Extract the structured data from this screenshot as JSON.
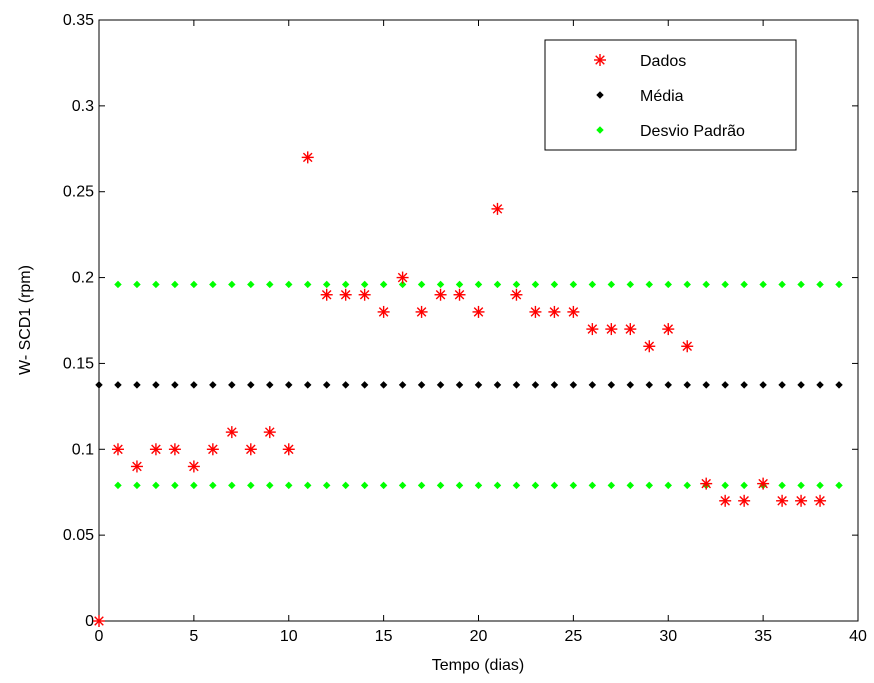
{
  "chart_data": {
    "type": "scatter",
    "title": "",
    "xlabel": "Tempo (dias)",
    "ylabel": "W- SCD1 (rpm)",
    "xlim": [
      0,
      40
    ],
    "ylim": [
      0,
      0.35
    ],
    "xticks": [
      0,
      5,
      10,
      15,
      20,
      25,
      30,
      35,
      40
    ],
    "yticks": [
      0,
      0.05,
      0.1,
      0.15,
      0.2,
      0.25,
      0.3,
      0.35
    ],
    "xtick_labels": [
      "0",
      "5",
      "10",
      "15",
      "20",
      "25",
      "30",
      "35",
      "40"
    ],
    "ytick_labels": [
      "0",
      "0.05",
      "0.1",
      "0.15",
      "0.2",
      "0.25",
      "0.3",
      "0.35"
    ],
    "grid": false,
    "legend_position": "top-right",
    "series": [
      {
        "name": "Dados",
        "marker": "asterisk",
        "color": "#ff0000",
        "x": [
          0,
          1,
          2,
          3,
          4,
          5,
          6,
          7,
          8,
          9,
          10,
          11,
          12,
          13,
          14,
          15,
          16,
          17,
          18,
          19,
          20,
          21,
          22,
          23,
          24,
          25,
          26,
          27,
          28,
          29,
          30,
          31,
          32,
          33,
          34,
          35,
          36,
          37,
          38
        ],
        "y": [
          0,
          0.1,
          0.09,
          0.1,
          0.1,
          0.09,
          0.1,
          0.11,
          0.1,
          0.11,
          0.1,
          0.27,
          0.19,
          0.19,
          0.19,
          0.18,
          0.2,
          0.18,
          0.19,
          0.19,
          0.18,
          0.24,
          0.19,
          0.18,
          0.18,
          0.18,
          0.17,
          0.17,
          0.17,
          0.16,
          0.17,
          0.16,
          0.08,
          0.07,
          0.07,
          0.08,
          0.07,
          0.07,
          0.07
        ]
      },
      {
        "name": "Média",
        "marker": "diamond",
        "color": "#000000",
        "x": [
          0,
          1,
          2,
          3,
          4,
          5,
          6,
          7,
          8,
          9,
          10,
          11,
          12,
          13,
          14,
          15,
          16,
          17,
          18,
          19,
          20,
          21,
          22,
          23,
          24,
          25,
          26,
          27,
          28,
          29,
          30,
          31,
          32,
          33,
          34,
          35,
          36,
          37,
          38,
          39
        ],
        "y": [
          0.1375,
          0.1375,
          0.1375,
          0.1375,
          0.1375,
          0.1375,
          0.1375,
          0.1375,
          0.1375,
          0.1375,
          0.1375,
          0.1375,
          0.1375,
          0.1375,
          0.1375,
          0.1375,
          0.1375,
          0.1375,
          0.1375,
          0.1375,
          0.1375,
          0.1375,
          0.1375,
          0.1375,
          0.1375,
          0.1375,
          0.1375,
          0.1375,
          0.1375,
          0.1375,
          0.1375,
          0.1375,
          0.1375,
          0.1375,
          0.1375,
          0.1375,
          0.1375,
          0.1375,
          0.1375,
          0.1375
        ]
      },
      {
        "name": "Desvio Padrão",
        "marker": "diamond",
        "color": "#00ff00",
        "x": [
          1,
          2,
          3,
          4,
          5,
          6,
          7,
          8,
          9,
          10,
          11,
          12,
          13,
          14,
          15,
          16,
          17,
          18,
          19,
          20,
          21,
          22,
          23,
          24,
          25,
          26,
          27,
          28,
          29,
          30,
          31,
          32,
          33,
          34,
          35,
          36,
          37,
          38,
          39
        ],
        "y_upper": [
          0.196,
          0.196,
          0.196,
          0.196,
          0.196,
          0.196,
          0.196,
          0.196,
          0.196,
          0.196,
          0.196,
          0.196,
          0.196,
          0.196,
          0.196,
          0.196,
          0.196,
          0.196,
          0.196,
          0.196,
          0.196,
          0.196,
          0.196,
          0.196,
          0.196,
          0.196,
          0.196,
          0.196,
          0.196,
          0.196,
          0.196,
          0.196,
          0.196,
          0.196,
          0.196,
          0.196,
          0.196,
          0.196,
          0.196
        ],
        "y_lower": [
          0.079,
          0.079,
          0.079,
          0.079,
          0.079,
          0.079,
          0.079,
          0.079,
          0.079,
          0.079,
          0.079,
          0.079,
          0.079,
          0.079,
          0.079,
          0.079,
          0.079,
          0.079,
          0.079,
          0.079,
          0.079,
          0.079,
          0.079,
          0.079,
          0.079,
          0.079,
          0.079,
          0.079,
          0.079,
          0.079,
          0.079,
          0.079,
          0.079,
          0.079,
          0.079,
          0.079,
          0.079,
          0.079,
          0.079
        ]
      }
    ]
  }
}
